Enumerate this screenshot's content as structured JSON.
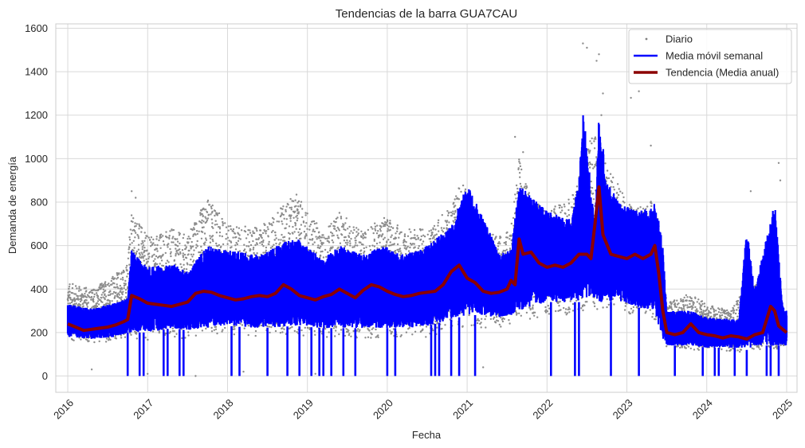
{
  "chart_data": {
    "type": "line",
    "title": "Tendencias de la barra GUA7CAU",
    "xlabel": "Fecha",
    "ylabel": "Demanda de energía",
    "xlim": [
      2015.85,
      2025.13
    ],
    "ylim": [
      -75,
      1620
    ],
    "x_ticks": [
      2016,
      2017,
      2018,
      2019,
      2020,
      2021,
      2022,
      2023,
      2024,
      2025
    ],
    "y_ticks": [
      0,
      200,
      400,
      600,
      800,
      1000,
      1200,
      1400,
      1600
    ],
    "grid": true,
    "legend_position": "top-right",
    "colors": {
      "daily": "#808080",
      "weekly": "#0000ff",
      "trend": "#8b0000",
      "grid": "#d9d9d9",
      "spine": "#cccccc"
    },
    "series": [
      {
        "name": "Diario",
        "style": "points",
        "envelope": {
          "x": [
            2016.0,
            2016.3,
            2016.6,
            2016.75,
            2016.8,
            2016.9,
            2017.0,
            2017.3,
            2017.5,
            2017.75,
            2018.0,
            2018.4,
            2018.85,
            2019.2,
            2019.4,
            2019.7,
            2019.95,
            2020.2,
            2020.5,
            2020.8,
            2020.95,
            2021.1,
            2021.4,
            2021.55,
            2021.65,
            2021.8,
            2022.0,
            2022.3,
            2022.6,
            2022.7,
            2022.9,
            2023.1,
            2023.3,
            2023.4,
            2023.5,
            2023.8,
            2024.0,
            2024.3,
            2024.5,
            2024.8,
            2024.95,
            2025.0
          ],
          "upper": [
            430,
            400,
            470,
            520,
            780,
            700,
            640,
            680,
            650,
            820,
            700,
            680,
            840,
            660,
            760,
            660,
            740,
            680,
            680,
            780,
            920,
            680,
            640,
            680,
            1000,
            820,
            760,
            820,
            1150,
            1000,
            880,
            760,
            820,
            700,
            340,
            380,
            330,
            300,
            420,
            420,
            310,
            300
          ],
          "lower": [
            160,
            150,
            160,
            180,
            160,
            150,
            160,
            180,
            170,
            180,
            190,
            180,
            190,
            170,
            170,
            170,
            170,
            170,
            180,
            200,
            220,
            220,
            220,
            240,
            260,
            260,
            280,
            280,
            300,
            300,
            300,
            280,
            260,
            240,
            130,
            120,
            120,
            110,
            110,
            130,
            120,
            120
          ]
        },
        "outliers": [
          [
            2016.8,
            850
          ],
          [
            2016.85,
            820
          ],
          [
            2021.6,
            1100
          ],
          [
            2021.7,
            1030
          ],
          [
            2022.45,
            1530
          ],
          [
            2022.5,
            1510
          ],
          [
            2022.65,
            1480
          ],
          [
            2022.62,
            1450
          ],
          [
            2022.7,
            1300
          ],
          [
            2022.68,
            1200
          ],
          [
            2023.15,
            1310
          ],
          [
            2023.05,
            1280
          ],
          [
            2023.3,
            1060
          ],
          [
            2024.55,
            850
          ],
          [
            2024.9,
            980
          ],
          [
            2024.92,
            900
          ],
          [
            2017.0,
            10
          ],
          [
            2017.6,
            0
          ],
          [
            2018.2,
            20
          ],
          [
            2019.1,
            10
          ],
          [
            2021.2,
            40
          ],
          [
            2016.3,
            30
          ],
          [
            2022.8,
            30
          ]
        ]
      },
      {
        "name": "Media móvil semanal",
        "style": "band",
        "envelope": {
          "x": [
            2016.0,
            2016.3,
            2016.6,
            2016.75,
            2016.8,
            2017.0,
            2017.3,
            2017.5,
            2017.75,
            2018.0,
            2018.4,
            2018.85,
            2019.2,
            2019.4,
            2019.7,
            2019.95,
            2020.2,
            2020.5,
            2020.8,
            2021.0,
            2021.15,
            2021.4,
            2021.55,
            2021.65,
            2022.0,
            2022.3,
            2022.4,
            2022.45,
            2022.6,
            2022.65,
            2022.75,
            2022.9,
            2023.1,
            2023.3,
            2023.35,
            2023.45,
            2023.5,
            2023.8,
            2024.0,
            2024.4,
            2024.5,
            2024.6,
            2024.85,
            2024.95,
            2025.0
          ],
          "upper": [
            330,
            310,
            340,
            360,
            580,
            500,
            520,
            480,
            600,
            580,
            560,
            640,
            540,
            600,
            560,
            600,
            560,
            600,
            690,
            880,
            780,
            560,
            580,
            880,
            760,
            720,
            900,
            1240,
            700,
            1220,
            900,
            800,
            760,
            780,
            820,
            600,
            300,
            300,
            270,
            260,
            680,
            400,
            800,
            320,
            300
          ],
          "lower": [
            180,
            170,
            180,
            200,
            200,
            200,
            220,
            210,
            220,
            230,
            220,
            230,
            220,
            220,
            220,
            220,
            220,
            230,
            260,
            280,
            280,
            270,
            280,
            300,
            340,
            340,
            340,
            360,
            360,
            340,
            340,
            340,
            320,
            300,
            300,
            160,
            140,
            140,
            130,
            130,
            120,
            140,
            140,
            140,
            140
          ]
        },
        "dropouts": [
          2016.75,
          2016.9,
          2016.95,
          2017.2,
          2017.25,
          2017.4,
          2017.45,
          2018.05,
          2018.15,
          2018.5,
          2018.75,
          2018.9,
          2019.05,
          2019.15,
          2019.2,
          2019.3,
          2019.45,
          2019.6,
          2020.0,
          2020.1,
          2020.55,
          2020.6,
          2020.65,
          2020.8,
          2020.9,
          2021.1,
          2022.05,
          2022.35,
          2022.4,
          2022.8,
          2023.15,
          2023.6,
          2023.95,
          2024.1,
          2024.15,
          2024.35,
          2024.5,
          2024.75,
          2024.8,
          2024.9
        ]
      },
      {
        "name": "Tendencia (Media anual)",
        "style": "line",
        "x": [
          2016.0,
          2016.1,
          2016.2,
          2016.3,
          2016.4,
          2016.5,
          2016.6,
          2016.7,
          2016.75,
          2016.8,
          2016.9,
          2017.0,
          2017.1,
          2017.2,
          2017.3,
          2017.4,
          2017.5,
          2017.6,
          2017.7,
          2017.8,
          2017.9,
          2018.0,
          2018.1,
          2018.2,
          2018.3,
          2018.4,
          2018.5,
          2018.6,
          2018.7,
          2018.8,
          2018.9,
          2019.0,
          2019.1,
          2019.2,
          2019.3,
          2019.4,
          2019.5,
          2019.6,
          2019.7,
          2019.8,
          2019.9,
          2020.0,
          2020.1,
          2020.2,
          2020.3,
          2020.4,
          2020.5,
          2020.6,
          2020.7,
          2020.8,
          2020.9,
          2021.0,
          2021.1,
          2021.2,
          2021.3,
          2021.4,
          2021.5,
          2021.55,
          2021.6,
          2021.65,
          2021.7,
          2021.8,
          2021.9,
          2022.0,
          2022.1,
          2022.2,
          2022.3,
          2022.4,
          2022.5,
          2022.55,
          2022.6,
          2022.65,
          2022.7,
          2022.8,
          2022.9,
          2023.0,
          2023.1,
          2023.2,
          2023.3,
          2023.35,
          2023.4,
          2023.45,
          2023.5,
          2023.6,
          2023.7,
          2023.8,
          2023.9,
          2024.0,
          2024.1,
          2024.2,
          2024.3,
          2024.4,
          2024.5,
          2024.6,
          2024.7,
          2024.8,
          2024.85,
          2024.9,
          2025.0
        ],
        "y": [
          240,
          225,
          210,
          215,
          220,
          225,
          235,
          250,
          260,
          370,
          355,
          335,
          330,
          325,
          320,
          330,
          340,
          380,
          390,
          385,
          370,
          360,
          350,
          355,
          365,
          370,
          365,
          380,
          420,
          400,
          370,
          360,
          350,
          365,
          375,
          400,
          380,
          360,
          395,
          420,
          410,
          390,
          375,
          365,
          370,
          380,
          385,
          390,
          420,
          480,
          510,
          450,
          430,
          390,
          380,
          385,
          400,
          440,
          420,
          630,
          560,
          570,
          520,
          500,
          510,
          500,
          520,
          560,
          560,
          540,
          700,
          870,
          650,
          560,
          550,
          540,
          560,
          540,
          560,
          600,
          470,
          300,
          200,
          190,
          200,
          240,
          200,
          190,
          185,
          175,
          185,
          180,
          170,
          190,
          200,
          320,
          300,
          230,
          200
        ]
      }
    ]
  }
}
